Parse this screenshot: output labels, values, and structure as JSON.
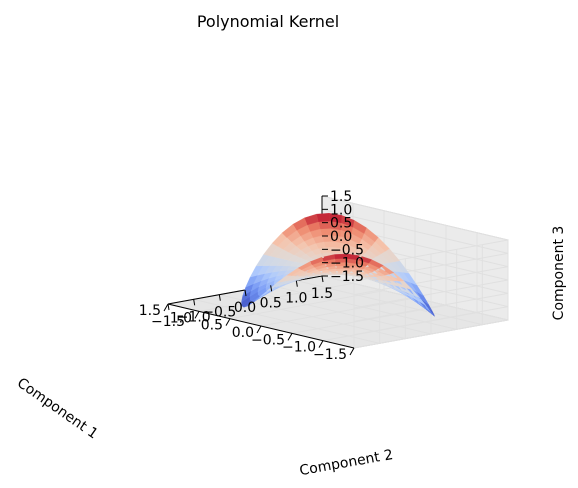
{
  "chart_data": {
    "type": "surface3d",
    "title": "Polynomial Kernel",
    "xlabel": "Component 1",
    "ylabel": "Component 2",
    "zlabel": "Component 3",
    "xlim": [
      -1.5,
      1.5
    ],
    "ylim": [
      -1.5,
      1.5
    ],
    "zlim": [
      -1.5,
      1.5
    ],
    "xticks": [
      "−1.5",
      "−1.0",
      "−0.5",
      "0.0",
      "0.5",
      "1.0",
      "1.5"
    ],
    "yticks": [
      "−1.5",
      "−1.0",
      "−0.5",
      "0.0",
      "0.5",
      "1.0",
      "1.5"
    ],
    "zticks": [
      "−1.5",
      "−1.0",
      "−0.5",
      "0.0",
      "0.5",
      "1.0",
      "1.5"
    ],
    "xtick_values": [
      -1.5,
      -1.0,
      -0.5,
      0.0,
      0.5,
      1.0,
      1.5
    ],
    "ytick_values": [
      -1.5,
      -1.0,
      -0.5,
      0.0,
      0.5,
      1.0,
      1.5
    ],
    "ztick_values": [
      -1.5,
      -1.0,
      -0.5,
      0.0,
      0.5,
      1.0,
      1.5
    ],
    "surface": {
      "parameterization": "x = r*cos(t), y = r*sin(t), z = r^2 * sin(2t)",
      "r_range": [
        0,
        1.2
      ],
      "theta_range": [
        0,
        360
      ]
    },
    "colormap": "coolwarm",
    "colormap_stops": [
      "#3b4cc0",
      "#7396f5",
      "#b0cbfc",
      "#dddddd",
      "#f5c4ac",
      "#ee8468",
      "#b40426"
    ],
    "grid": true,
    "elev": 20,
    "azim": -30
  }
}
